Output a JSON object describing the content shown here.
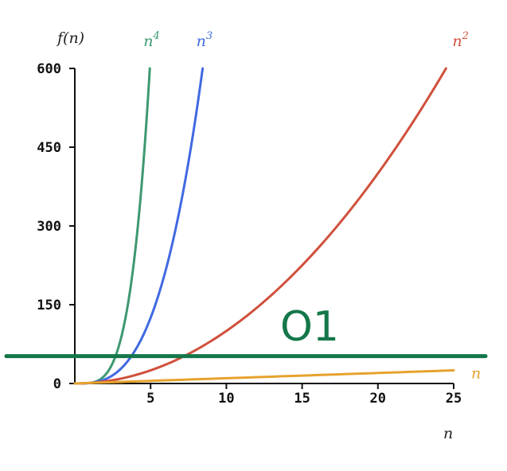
{
  "chart_data": {
    "type": "line",
    "title": "",
    "xlabel": "n",
    "ylabel": "f(n)",
    "xlim": [
      0,
      25
    ],
    "ylim": [
      0,
      600
    ],
    "x_ticks": [
      5,
      10,
      15,
      20,
      25
    ],
    "y_ticks": [
      0,
      150,
      300,
      450,
      600
    ],
    "grid": false,
    "series": [
      {
        "name": "n^4",
        "label_base": "n",
        "label_exp": "4",
        "exponent": 4,
        "color": "#3d9970",
        "x": [
          0,
          1,
          2,
          3,
          4,
          4.95
        ],
        "y": [
          0,
          1,
          16,
          81,
          256,
          600
        ]
      },
      {
        "name": "n^3",
        "label_base": "n",
        "label_exp": "3",
        "exponent": 3,
        "color": "#4169e1",
        "x": [
          0,
          2,
          4,
          6,
          8,
          8.43
        ],
        "y": [
          0,
          8,
          64,
          216,
          512,
          600
        ]
      },
      {
        "name": "n^2",
        "label_base": "n",
        "label_exp": "2",
        "exponent": 2,
        "color": "#d0503c",
        "x": [
          0,
          5,
          10,
          15,
          20,
          24.5
        ],
        "y": [
          0,
          25,
          100,
          225,
          400,
          600
        ]
      },
      {
        "name": "n",
        "label_base": "n",
        "label_exp": "",
        "exponent": 1,
        "color": "#e6a22e",
        "x": [
          0,
          25
        ],
        "y": [
          0,
          25
        ]
      }
    ],
    "reference_line": {
      "y": 52,
      "color": "#14774a"
    },
    "annotation": {
      "text": "O1",
      "color": "#14774a"
    }
  }
}
